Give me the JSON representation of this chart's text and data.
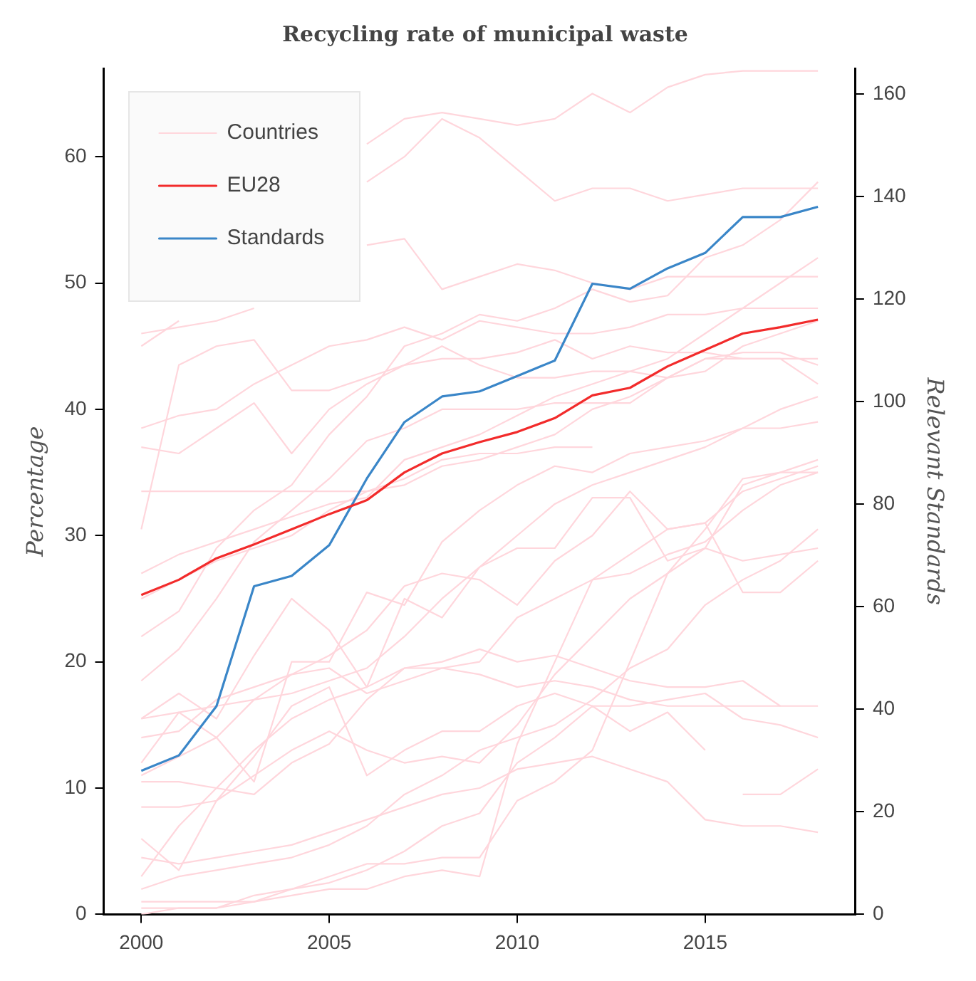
{
  "chart_data": {
    "type": "line",
    "title": "Recycling rate of municipal waste",
    "ylabel": "Percentage",
    "y2label": "Relevant Standards",
    "x": [
      2000,
      2001,
      2002,
      2003,
      2004,
      2005,
      2006,
      2007,
      2008,
      2009,
      2010,
      2011,
      2012,
      2013,
      2014,
      2015,
      2016,
      2017,
      2018
    ],
    "xlim": [
      1999,
      2019
    ],
    "xticks": [
      2000,
      2005,
      2010,
      2015
    ],
    "ylim": [
      0,
      67
    ],
    "yticks": [
      0,
      10,
      20,
      30,
      40,
      50,
      60
    ],
    "y2lim": [
      0,
      165
    ],
    "y2ticks": [
      0,
      20,
      40,
      60,
      80,
      100,
      120,
      140,
      160
    ],
    "legend": "top left",
    "grid": false,
    "marker": "none",
    "line_style": "solid",
    "series": [
      {
        "name": "Countries",
        "color": "#ffd6dc",
        "values": [
          null,
          null,
          null,
          null,
          null,
          null,
          61,
          63,
          63.5,
          63,
          62.5,
          63,
          65,
          63.5,
          65.5,
          66.5,
          66.8,
          66.8,
          66.8
        ]
      },
      {
        "color": "#ffd6dc",
        "values": [
          45,
          47,
          null,
          null,
          null,
          null,
          58,
          60,
          63,
          61.5,
          59,
          56.5,
          57.5,
          57.5,
          56.5,
          57,
          57.5,
          57.5,
          57.5
        ]
      },
      {
        "color": "#ffd6dc",
        "values": [
          46,
          46.5,
          47,
          48,
          null,
          null,
          53,
          53.5,
          49.5,
          50.5,
          51.5,
          51,
          50,
          49.5,
          50.5,
          50.5,
          50.5,
          50.5,
          50.5
        ]
      },
      {
        "color": "#ffd6dc",
        "values": [
          38.5,
          39.5,
          40,
          42,
          43.5,
          45,
          45.5,
          46.5,
          45.5,
          47,
          46.5,
          46,
          46,
          46.5,
          47.5,
          47.5,
          48,
          48,
          48
        ]
      },
      {
        "color": "#ffd6dc",
        "values": [
          37,
          36.5,
          38.5,
          40.5,
          36.5,
          40,
          42,
          43.5,
          45,
          43.5,
          42.5,
          42.5,
          43,
          43,
          42.5,
          44,
          44,
          44,
          44
        ]
      },
      {
        "color": "#ffd6dc",
        "values": [
          30.5,
          43.5,
          45,
          45.5,
          41.5,
          41.5,
          42.5,
          43.5,
          44,
          44,
          44.5,
          45.5,
          44,
          45,
          44.5,
          44.5,
          44,
          44,
          42
        ]
      },
      {
        "color": "#ffd6dc",
        "values": [
          33.5,
          33.5,
          33.5,
          33.5,
          33.5,
          33.5,
          33.5,
          34.5,
          36,
          36.5,
          36.5,
          37,
          37,
          null,
          null,
          null,
          null,
          null,
          null
        ]
      },
      {
        "color": "#ffd6dc",
        "values": [
          25,
          26.5,
          28,
          29,
          30,
          32,
          33.5,
          34,
          35.5,
          36,
          37,
          38,
          40,
          41,
          42.5,
          43,
          45,
          46,
          47
        ]
      },
      {
        "color": "#ffd6dc",
        "values": [
          27,
          28.5,
          29.5,
          30.5,
          31.5,
          32.5,
          33,
          36,
          37,
          38,
          39.5,
          41,
          42,
          43,
          44,
          46,
          48,
          50,
          52
        ]
      },
      {
        "color": "#ffd6dc",
        "values": [
          22,
          24,
          29,
          32,
          34,
          38,
          41,
          45,
          46,
          47.5,
          47,
          48,
          49.5,
          48.5,
          49,
          52,
          53,
          55,
          58
        ]
      },
      {
        "color": "#ffd6dc",
        "values": [
          18.5,
          21,
          25,
          29.5,
          32,
          34.5,
          37.5,
          38.5,
          40,
          40,
          40,
          40.5,
          40.5,
          40.5,
          42.5,
          44,
          44.5,
          44.5,
          43.5
        ]
      },
      {
        "color": "#ffd6dc",
        "values": [
          15.5,
          16,
          16.5,
          17,
          17.5,
          18.5,
          19.5,
          22,
          25,
          27.5,
          30,
          32.5,
          34,
          35,
          36,
          37,
          38.5,
          40,
          41
        ]
      },
      {
        "color": "#ffd6dc",
        "values": [
          15.5,
          17.5,
          15.5,
          20.5,
          25,
          22.5,
          18,
          25,
          23.5,
          27.5,
          29,
          29,
          33,
          33,
          28,
          29,
          28,
          28.5,
          29
        ]
      },
      {
        "color": "#ffd6dc",
        "values": [
          14,
          14.5,
          17,
          18,
          19,
          19.5,
          17.5,
          18.5,
          19.5,
          19,
          18,
          18.5,
          18,
          17,
          16.5,
          16.5,
          16.5,
          16.5,
          null
        ]
      },
      {
        "color": "#ffd6dc",
        "values": [
          12,
          16,
          14,
          10.5,
          20,
          20,
          25.5,
          24.5,
          29.5,
          32,
          34,
          35.5,
          35,
          36.5,
          37,
          37.5,
          38.5,
          38.5,
          39
        ]
      },
      {
        "color": "#ffd6dc",
        "values": [
          11,
          12.5,
          14,
          17,
          19,
          20.5,
          22.5,
          26,
          27,
          26.5,
          24.5,
          28,
          30,
          33.5,
          30.5,
          31,
          25.5,
          25.5,
          28
        ]
      },
      {
        "color": "#ffd6dc",
        "values": [
          10.5,
          10.5,
          10,
          9.5,
          12,
          13.5,
          17,
          19.5,
          20,
          21,
          20,
          20.5,
          19.5,
          18.5,
          18,
          18,
          18.5,
          16.5,
          16.5
        ]
      },
      {
        "color": "#ffd6dc",
        "values": [
          3,
          7,
          10,
          13,
          15.5,
          17,
          18,
          19.5,
          19.5,
          20,
          23.5,
          25,
          26.5,
          27,
          28.5,
          29.5,
          32,
          34,
          35
        ]
      },
      {
        "color": "#ffd6dc",
        "values": [
          6,
          3.5,
          9,
          12.5,
          16.5,
          18,
          11,
          13,
          14.5,
          14.5,
          16.5,
          17.5,
          16.5,
          16.5,
          17,
          17.5,
          15.5,
          15,
          14
        ]
      },
      {
        "color": "#ffd6dc",
        "values": [
          2,
          3,
          3.5,
          4,
          4.5,
          5.5,
          7,
          9.5,
          11,
          13,
          14,
          15,
          17,
          19.5,
          21,
          24.5,
          26.5,
          28,
          30.5
        ]
      },
      {
        "color": "#ffd6dc",
        "values": [
          1,
          1,
          1,
          1,
          2,
          3,
          4,
          4,
          4.5,
          4.5,
          9,
          10.5,
          13,
          20,
          27,
          29,
          34,
          35,
          36
        ]
      },
      {
        "color": "#ffd6dc",
        "values": [
          0.5,
          0.5,
          0.5,
          1,
          1.5,
          2,
          2,
          3,
          3.5,
          3,
          13.5,
          20,
          26.5,
          28.5,
          30.5,
          31,
          33.5,
          34.5,
          35.5
        ]
      },
      {
        "color": "#ffd6dc",
        "values": [
          4.5,
          4,
          4.5,
          5,
          5.5,
          6.5,
          7.5,
          8.5,
          9.5,
          10,
          11.5,
          12,
          12.5,
          11.5,
          10.5,
          7.5,
          7,
          7,
          6.5
        ]
      },
      {
        "color": "#ffd6dc",
        "values": [
          0,
          0.5,
          0.5,
          1.5,
          2,
          2.5,
          3.5,
          5,
          7,
          8,
          12,
          14,
          16.5,
          14.5,
          16,
          13,
          null,
          null,
          null
        ]
      },
      {
        "color": "#ffd6dc",
        "values": [
          null,
          null,
          null,
          null,
          null,
          null,
          null,
          null,
          null,
          null,
          null,
          null,
          null,
          null,
          null,
          null,
          9.5,
          9.5,
          11.5
        ]
      },
      {
        "color": "#ffd6dc",
        "values": [
          8.5,
          8.5,
          9,
          11,
          13,
          14.5,
          13,
          12,
          12.5,
          12,
          15,
          19,
          22,
          25,
          27,
          30.5,
          34.5,
          35,
          35
        ]
      },
      {
        "name": "EU28",
        "color": "#f22b2b",
        "values": [
          25.3,
          26.5,
          28.2,
          29.3,
          30.5,
          31.7,
          32.8,
          35,
          36.5,
          37.4,
          38.2,
          39.3,
          41.1,
          41.7,
          43.4,
          44.7,
          46,
          46.5,
          47.1
        ]
      },
      {
        "name": "Standards",
        "color": "#3a86c8",
        "axis": "y2",
        "values": [
          28,
          31,
          40.6,
          64,
          66,
          72,
          85,
          96,
          101,
          102,
          105,
          108,
          123,
          122,
          126,
          129,
          136,
          136,
          138
        ]
      }
    ]
  }
}
